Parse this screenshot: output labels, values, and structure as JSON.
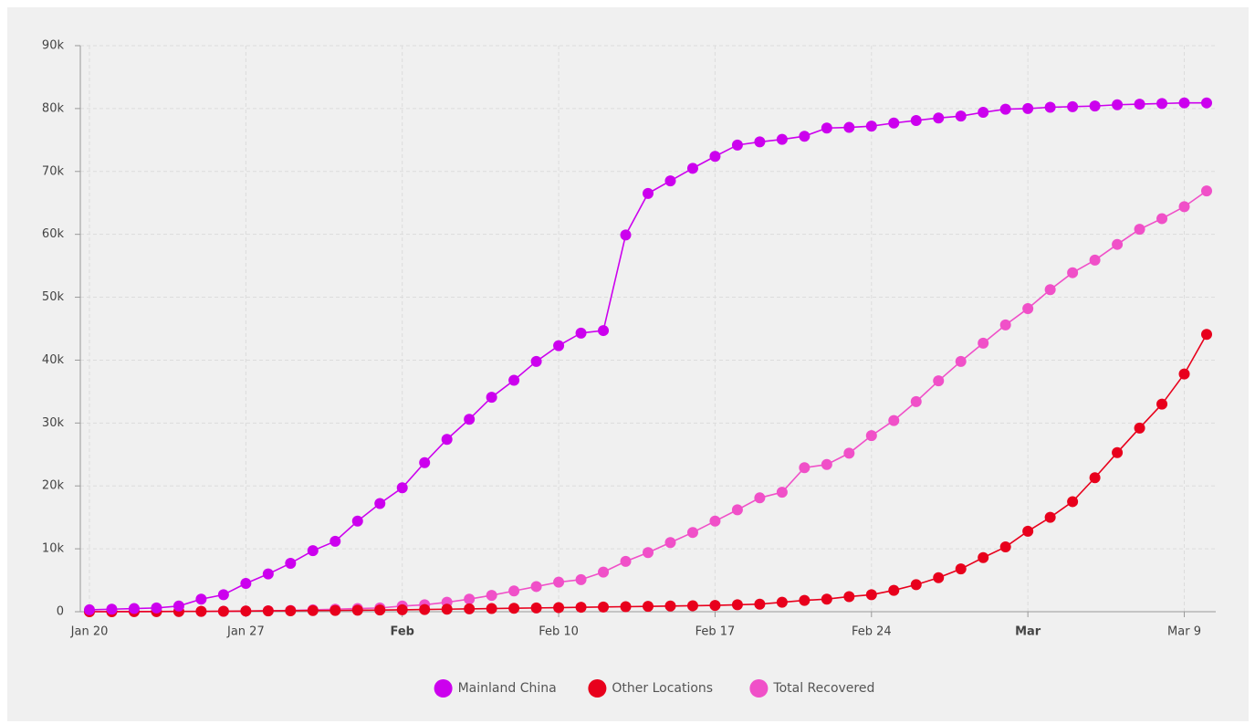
{
  "chart_data": {
    "type": "line",
    "categories": [
      "Jan 20",
      "Jan 21",
      "Jan 22",
      "Jan 23",
      "Jan 24",
      "Jan 25",
      "Jan 26",
      "Jan 27",
      "Jan 28",
      "Jan 29",
      "Jan 30",
      "Jan 31",
      "Feb 1",
      "Feb 2",
      "Feb 3",
      "Feb 4",
      "Feb 5",
      "Feb 6",
      "Feb 7",
      "Feb 8",
      "Feb 9",
      "Feb 10",
      "Feb 11",
      "Feb 12",
      "Feb 13",
      "Feb 14",
      "Feb 15",
      "Feb 16",
      "Feb 17",
      "Feb 18",
      "Feb 19",
      "Feb 20",
      "Feb 21",
      "Feb 22",
      "Feb 23",
      "Feb 24",
      "Feb 25",
      "Feb 26",
      "Feb 27",
      "Feb 28",
      "Feb 29",
      "Mar 1",
      "Mar 2",
      "Mar 3",
      "Mar 4",
      "Mar 5",
      "Mar 6",
      "Mar 7",
      "Mar 8",
      "Mar 9",
      "Mar 10"
    ],
    "series": [
      {
        "name": "Mainland China",
        "color": "#cc00ee",
        "values": [
          300,
          400,
          500,
          600,
          900,
          2000,
          2700,
          4500,
          6000,
          7700,
          9700,
          11200,
          14400,
          17200,
          19700,
          23700,
          27400,
          30600,
          34100,
          36800,
          39800,
          42300,
          44300,
          44700,
          59900,
          66500,
          68500,
          70500,
          72400,
          74200,
          74700,
          75100,
          75600,
          76900,
          77000,
          77200,
          77700,
          78100,
          78500,
          78800,
          79400,
          79900,
          80000,
          80200,
          80300,
          80400,
          80600,
          80700,
          80800,
          80900,
          80900
        ]
      },
      {
        "name": "Other Locations",
        "color": "#e8001c",
        "values": [
          0,
          0,
          10,
          20,
          40,
          50,
          80,
          100,
          130,
          150,
          180,
          200,
          230,
          270,
          300,
          350,
          400,
          450,
          500,
          550,
          600,
          650,
          700,
          750,
          800,
          850,
          900,
          950,
          1000,
          1100,
          1200,
          1500,
          1800,
          2000,
          2400,
          2700,
          3400,
          4300,
          5400,
          6800,
          8600,
          10300,
          12800,
          15000,
          17500,
          21300,
          25300,
          29200,
          33000,
          37800,
          44100
        ]
      },
      {
        "name": "Total Recovered",
        "color": "#f050c8",
        "values": [
          30,
          30,
          30,
          30,
          40,
          50,
          50,
          100,
          150,
          200,
          300,
          400,
          500,
          600,
          900,
          1100,
          1500,
          2000,
          2600,
          3300,
          4000,
          4700,
          5100,
          6300,
          8000,
          9400,
          11000,
          12600,
          14400,
          16200,
          18100,
          19000,
          22900,
          23400,
          25200,
          28000,
          30400,
          33400,
          36700,
          39800,
          42700,
          45600,
          48200,
          51200,
          53900,
          55900,
          58400,
          60800,
          62500,
          64400,
          66900
        ]
      }
    ],
    "ylim": [
      0,
      90000
    ],
    "yticks": [
      0,
      {
        "value": 10000,
        "label": "10k"
      },
      {
        "value": 20000,
        "label": "20k"
      },
      {
        "value": 30000,
        "label": "30k"
      },
      {
        "value": 40000,
        "label": "40k"
      },
      {
        "value": 50000,
        "label": "50k"
      },
      {
        "value": 60000,
        "label": "60k"
      },
      {
        "value": 70000,
        "label": "70k"
      },
      {
        "value": 80000,
        "label": "80k"
      },
      {
        "value": 90000,
        "label": "90k"
      }
    ],
    "xticks": [
      "Jan 20",
      "Jan 27",
      {
        "value": "Feb 3",
        "label": "Feb"
      },
      "Feb 10",
      "Feb 17",
      "Feb 24",
      {
        "value": "Mar 2",
        "label": "Mar"
      },
      "Mar 9"
    ],
    "grid": true,
    "legend": "bottom"
  }
}
